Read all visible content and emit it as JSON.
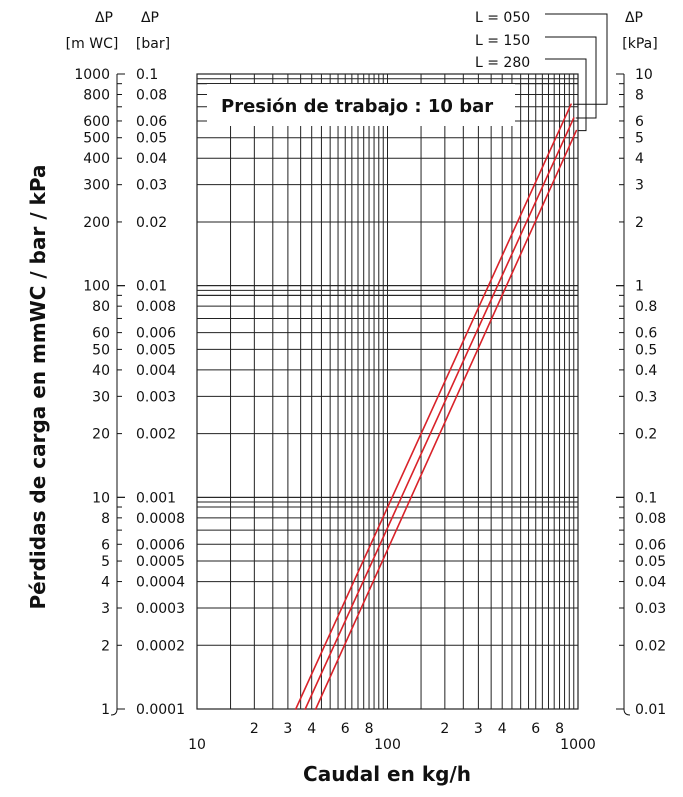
{
  "chart_data": {
    "type": "line",
    "title": "Presión de trabajo : 10 bar",
    "xlabel": "Caudal en kg/h",
    "ylabel": "Pérdidas de carga en mmWC / bar / kPa",
    "x_scale": "log",
    "y_scale": "log",
    "xlim": [
      10,
      1000
    ],
    "ylim": [
      1,
      1000
    ],
    "grid": true,
    "axes": {
      "left_outer": {
        "unit_symbol": "ΔP",
        "unit": "[m WC]"
      },
      "left_inner": {
        "unit_symbol": "ΔP",
        "unit": "[bar]"
      },
      "right": {
        "unit_symbol": "ΔP",
        "unit": "[kPa]"
      }
    },
    "y_ticks": [
      {
        "mwc": "1000",
        "bar": "0.1",
        "kpa": "10"
      },
      {
        "mwc": "800",
        "bar": "0.08",
        "kpa": "8"
      },
      {
        "mwc": "600",
        "bar": "0.06",
        "kpa": "6"
      },
      {
        "mwc": "500",
        "bar": "0.05",
        "kpa": "5"
      },
      {
        "mwc": "400",
        "bar": "0.04",
        "kpa": "4"
      },
      {
        "mwc": "300",
        "bar": "0.03",
        "kpa": "3"
      },
      {
        "mwc": "200",
        "bar": "0.02",
        "kpa": "2"
      },
      {
        "mwc": "100",
        "bar": "0.01",
        "kpa": "1"
      },
      {
        "mwc": "80",
        "bar": "0.008",
        "kpa": "0.8"
      },
      {
        "mwc": "60",
        "bar": "0.006",
        "kpa": "0.6"
      },
      {
        "mwc": "50",
        "bar": "0.005",
        "kpa": "0.5"
      },
      {
        "mwc": "40",
        "bar": "0.004",
        "kpa": "0.4"
      },
      {
        "mwc": "30",
        "bar": "0.003",
        "kpa": "0.3"
      },
      {
        "mwc": "20",
        "bar": "0.002",
        "kpa": "0.2"
      },
      {
        "mwc": "10",
        "bar": "0.001",
        "kpa": "0.1"
      },
      {
        "mwc": "8",
        "bar": "0.0008",
        "kpa": "0.08"
      },
      {
        "mwc": "6",
        "bar": "0.0006",
        "kpa": "0.06"
      },
      {
        "mwc": "5",
        "bar": "0.0005",
        "kpa": "0.05"
      },
      {
        "mwc": "4",
        "bar": "0.0004",
        "kpa": "0.04"
      },
      {
        "mwc": "3",
        "bar": "0.0003",
        "kpa": "0.03"
      },
      {
        "mwc": "2",
        "bar": "0.0002",
        "kpa": "0.02"
      },
      {
        "mwc": "1",
        "bar": "0.0001",
        "kpa": "0.01"
      }
    ],
    "x_ticks": [
      {
        "value": 10,
        "label": "10",
        "major": true
      },
      {
        "value": 20,
        "label": "2",
        "major": false
      },
      {
        "value": 30,
        "label": "3",
        "major": false
      },
      {
        "value": 40,
        "label": "4",
        "major": false
      },
      {
        "value": 60,
        "label": "6",
        "major": false
      },
      {
        "value": 80,
        "label": "8",
        "major": false
      },
      {
        "value": 100,
        "label": "100",
        "major": true
      },
      {
        "value": 200,
        "label": "2",
        "major": false
      },
      {
        "value": 300,
        "label": "3",
        "major": false
      },
      {
        "value": 400,
        "label": "4",
        "major": false
      },
      {
        "value": 600,
        "label": "6",
        "major": false
      },
      {
        "value": 800,
        "label": "8",
        "major": false
      },
      {
        "value": 1000,
        "label": "1000",
        "major": true
      }
    ],
    "series_color": "#d9232a",
    "series": [
      {
        "name": "L = 050",
        "x": [
          33,
          920
        ],
        "y": [
          1,
          720
        ]
      },
      {
        "name": "L = 150",
        "x": [
          37,
          950
        ],
        "y": [
          1,
          620
        ]
      },
      {
        "name": "L = 280",
        "x": [
          42,
          980
        ],
        "y": [
          1,
          540
        ]
      }
    ]
  }
}
